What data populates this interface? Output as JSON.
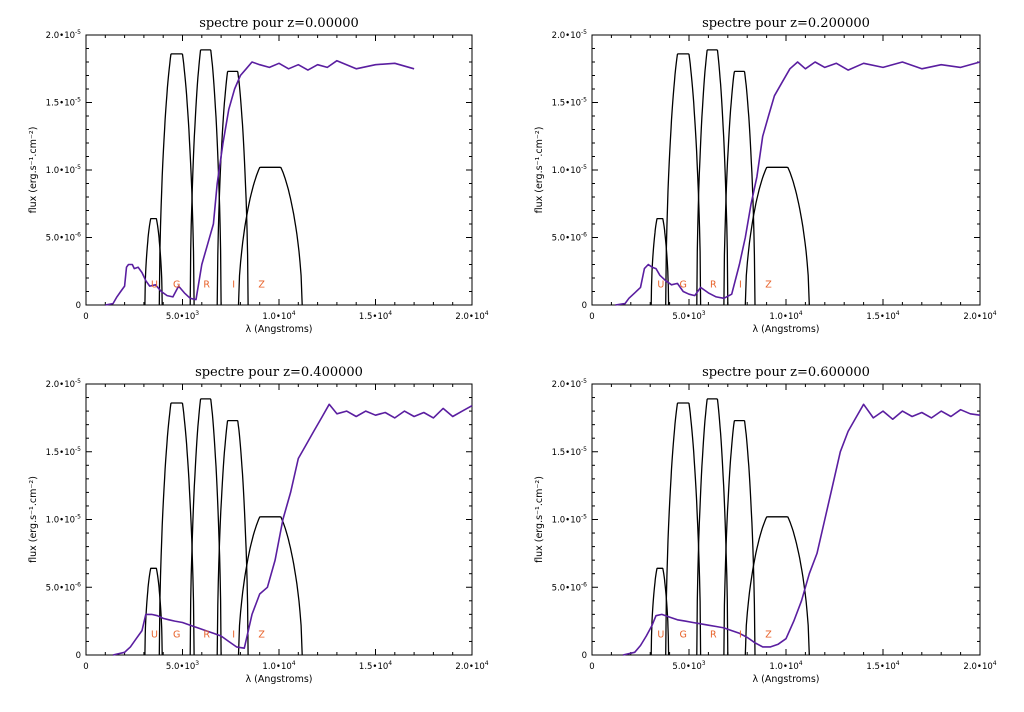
{
  "colors": {
    "spectrum": "#5a1ea0",
    "filters": "#000000",
    "band_labels": "#e8622a"
  },
  "chart_data": [
    {
      "type": "line",
      "title": "spectre pour z=0.00000",
      "xlabel": "λ (Angstroms)",
      "ylabel": "flux (erg.s⁻¹.cm⁻²)",
      "xlim": [
        0,
        20000
      ],
      "ylim": [
        0,
        2e-05
      ],
      "x_ticks": [
        {
          "v": 0,
          "t": "0",
          "e": ""
        },
        {
          "v": 5000,
          "t": "5.0•10",
          "e": "3"
        },
        {
          "v": 10000,
          "t": "1.0•10",
          "e": "4"
        },
        {
          "v": 15000,
          "t": "1.5•10",
          "e": "4"
        },
        {
          "v": 20000,
          "t": "2.0•10",
          "e": "4"
        }
      ],
      "y_ticks": [
        {
          "v": 0,
          "t": "0",
          "e": ""
        },
        {
          "v": 5e-06,
          "t": "5.0•10",
          "e": "-6"
        },
        {
          "v": 1e-05,
          "t": "1.0•10",
          "e": "-5"
        },
        {
          "v": 1.5e-05,
          "t": "1.5•10",
          "e": "-5"
        },
        {
          "v": 2e-05,
          "t": "2.0•10",
          "e": "-5"
        }
      ],
      "band_labels": [
        {
          "t": "U",
          "x": 3550
        },
        {
          "t": "G",
          "x": 4700
        },
        {
          "t": "R",
          "x": 6250
        },
        {
          "t": "I",
          "x": 7650
        },
        {
          "t": "Z",
          "x": 9100
        }
      ],
      "series": [
        {
          "x": [
            1000,
            1400,
            1600,
            1800,
            2000,
            2100,
            2200,
            2400,
            2500,
            2700,
            2900,
            3100,
            3300,
            3600,
            3900,
            4200,
            4500,
            4800,
            5100,
            5400,
            5700,
            6000,
            6300,
            6600,
            6800,
            7100,
            7400,
            7700,
            8000,
            8300,
            8600,
            9000,
            9500,
            10000,
            10500,
            11000,
            11500,
            12000,
            12500,
            13000,
            14000,
            15000,
            16000,
            17000
          ],
          "y": [
            0,
            1e-07,
            6e-07,
            1e-06,
            1.4e-06,
            2.8e-06,
            3e-06,
            3e-06,
            2.7e-06,
            2.8e-06,
            2.4e-06,
            1.8e-06,
            1.4e-06,
            1.5e-06,
            1e-06,
            7e-07,
            6e-07,
            1.4e-06,
            9e-07,
            5e-07,
            4e-07,
            3e-06,
            4.5e-06,
            6e-06,
            9e-06,
            1.2e-05,
            1.45e-05,
            1.6e-05,
            1.7e-05,
            1.75e-05,
            1.8e-05,
            1.78e-05,
            1.76e-05,
            1.79e-05,
            1.75e-05,
            1.78e-05,
            1.74e-05,
            1.78e-05,
            1.76e-05,
            1.81e-05,
            1.75e-05,
            1.78e-05,
            1.79e-05,
            1.75e-05
          ]
        }
      ]
    },
    {
      "type": "line",
      "title": "spectre pour z=0.200000",
      "xlabel": "λ (Angstroms)",
      "ylabel": "flux (erg.s⁻¹.cm⁻²)",
      "xlim": [
        0,
        20000
      ],
      "ylim": [
        0,
        2e-05
      ],
      "x_ticks": [
        {
          "v": 0,
          "t": "0",
          "e": ""
        },
        {
          "v": 5000,
          "t": "5.0•10",
          "e": "3"
        },
        {
          "v": 10000,
          "t": "1.0•10",
          "e": "4"
        },
        {
          "v": 15000,
          "t": "1.5•10",
          "e": "4"
        },
        {
          "v": 20000,
          "t": "2.0•10",
          "e": "4"
        }
      ],
      "y_ticks": [
        {
          "v": 0,
          "t": "0",
          "e": ""
        },
        {
          "v": 5e-06,
          "t": "5.0•10",
          "e": "-6"
        },
        {
          "v": 1e-05,
          "t": "1.0•10",
          "e": "-5"
        },
        {
          "v": 1.5e-05,
          "t": "1.5•10",
          "e": "-5"
        },
        {
          "v": 2e-05,
          "t": "2.0•10",
          "e": "-5"
        }
      ],
      "band_labels": [
        {
          "t": "U",
          "x": 3550
        },
        {
          "t": "G",
          "x": 4700
        },
        {
          "t": "R",
          "x": 6250
        },
        {
          "t": "I",
          "x": 7650
        },
        {
          "t": "Z",
          "x": 9100
        }
      ],
      "series": [
        {
          "x": [
            1200,
            1700,
            1900,
            2200,
            2500,
            2700,
            2900,
            3100,
            3300,
            3500,
            3800,
            4100,
            4400,
            4700,
            5000,
            5300,
            5600,
            6000,
            6400,
            6800,
            7200,
            7600,
            7900,
            8200,
            8500,
            8800,
            9100,
            9400,
            9800,
            10200,
            10600,
            11000,
            11500,
            12000,
            12600,
            13200,
            14000,
            15000,
            16000,
            17000,
            18000,
            19000,
            20000
          ],
          "y": [
            0,
            1e-07,
            5e-07,
            9e-07,
            1.3e-06,
            2.7e-06,
            3e-06,
            2.8e-06,
            2.7e-06,
            2.2e-06,
            1.8e-06,
            1.5e-06,
            1.6e-06,
            1e-06,
            8e-07,
            7e-07,
            1.3e-06,
            9e-07,
            6e-07,
            5e-07,
            8e-07,
            3e-06,
            5e-06,
            7.5e-06,
            9.5e-06,
            1.25e-05,
            1.4e-05,
            1.55e-05,
            1.65e-05,
            1.75e-05,
            1.8e-05,
            1.75e-05,
            1.8e-05,
            1.76e-05,
            1.79e-05,
            1.74e-05,
            1.79e-05,
            1.76e-05,
            1.8e-05,
            1.75e-05,
            1.78e-05,
            1.76e-05,
            1.8e-05
          ]
        }
      ]
    },
    {
      "type": "line",
      "title": "spectre pour z=0.400000",
      "xlabel": "λ (Angstroms)",
      "ylabel": "flux (erg.s⁻¹.cm⁻²)",
      "xlim": [
        0,
        20000
      ],
      "ylim": [
        0,
        2e-05
      ],
      "x_ticks": [
        {
          "v": 0,
          "t": "0",
          "e": ""
        },
        {
          "v": 5000,
          "t": "5.0•10",
          "e": "3"
        },
        {
          "v": 10000,
          "t": "1.0•10",
          "e": "4"
        },
        {
          "v": 15000,
          "t": "1.5•10",
          "e": "4"
        },
        {
          "v": 20000,
          "t": "2.0•10",
          "e": "4"
        }
      ],
      "y_ticks": [
        {
          "v": 0,
          "t": "0",
          "e": ""
        },
        {
          "v": 5e-06,
          "t": "5.0•10",
          "e": "-6"
        },
        {
          "v": 1e-05,
          "t": "1.0•10",
          "e": "-5"
        },
        {
          "v": 1.5e-05,
          "t": "1.5•10",
          "e": "-5"
        },
        {
          "v": 2e-05,
          "t": "2.0•10",
          "e": "-5"
        }
      ],
      "band_labels": [
        {
          "t": "U",
          "x": 3550
        },
        {
          "t": "G",
          "x": 4700
        },
        {
          "t": "R",
          "x": 6250
        },
        {
          "t": "I",
          "x": 7650
        },
        {
          "t": "Z",
          "x": 9100
        }
      ],
      "series": [
        {
          "x": [
            1400,
            2000,
            2300,
            2600,
            2900,
            3100,
            3400,
            3700,
            4000,
            4300,
            4600,
            5000,
            5400,
            5800,
            6200,
            6600,
            7000,
            7400,
            7800,
            8200,
            8600,
            9000,
            9400,
            9800,
            10200,
            10600,
            11000,
            11400,
            11800,
            12200,
            12600,
            13000,
            13500,
            14000,
            14500,
            15000,
            15500,
            16000,
            16500,
            17000,
            17500,
            18000,
            18500,
            19000,
            19500,
            20000
          ],
          "y": [
            0,
            2e-07,
            6e-07,
            1.2e-06,
            1.8e-06,
            3e-06,
            3e-06,
            2.9e-06,
            2.7e-06,
            2.6e-06,
            2.5e-06,
            2.4e-06,
            2.2e-06,
            2e-06,
            1.8e-06,
            1.6e-06,
            1.4e-06,
            1e-06,
            6e-07,
            5e-07,
            3e-06,
            4.5e-06,
            5e-06,
            7e-06,
            1e-05,
            1.2e-05,
            1.45e-05,
            1.55e-05,
            1.65e-05,
            1.75e-05,
            1.85e-05,
            1.78e-05,
            1.8e-05,
            1.76e-05,
            1.8e-05,
            1.77e-05,
            1.79e-05,
            1.75e-05,
            1.8e-05,
            1.76e-05,
            1.79e-05,
            1.75e-05,
            1.82e-05,
            1.76e-05,
            1.8e-05,
            1.84e-05
          ]
        }
      ]
    },
    {
      "type": "line",
      "title": "spectre pour z=0.600000",
      "xlabel": "λ (Angstroms)",
      "ylabel": "flux (erg.s⁻¹.cm⁻²)",
      "xlim": [
        0,
        20000
      ],
      "ylim": [
        0,
        2e-05
      ],
      "x_ticks": [
        {
          "v": 0,
          "t": "0",
          "e": ""
        },
        {
          "v": 5000,
          "t": "5.0•10",
          "e": "3"
        },
        {
          "v": 10000,
          "t": "1.0•10",
          "e": "4"
        },
        {
          "v": 15000,
          "t": "1.5•10",
          "e": "4"
        },
        {
          "v": 20000,
          "t": "2.0•10",
          "e": "4"
        }
      ],
      "y_ticks": [
        {
          "v": 0,
          "t": "0",
          "e": ""
        },
        {
          "v": 5e-06,
          "t": "5.0•10",
          "e": "-6"
        },
        {
          "v": 1e-05,
          "t": "1.0•10",
          "e": "-5"
        },
        {
          "v": 1.5e-05,
          "t": "1.5•10",
          "e": "-5"
        },
        {
          "v": 2e-05,
          "t": "2.0•10",
          "e": "-5"
        }
      ],
      "band_labels": [
        {
          "t": "U",
          "x": 3550
        },
        {
          "t": "G",
          "x": 4700
        },
        {
          "t": "R",
          "x": 6250
        },
        {
          "t": "I",
          "x": 7650
        },
        {
          "t": "Z",
          "x": 9100
        }
      ],
      "series": [
        {
          "x": [
            1600,
            2200,
            2500,
            2800,
            3100,
            3300,
            3600,
            4000,
            4400,
            4800,
            5200,
            5600,
            6000,
            6400,
            6800,
            7200,
            7600,
            8000,
            8400,
            8800,
            9200,
            9600,
            10000,
            10400,
            10800,
            11200,
            11600,
            12000,
            12400,
            12800,
            13200,
            13600,
            14000,
            14500,
            15000,
            15500,
            16000,
            16500,
            17000,
            17500,
            18000,
            18500,
            19000,
            19500,
            20000
          ],
          "y": [
            0,
            2e-07,
            7e-07,
            1.4e-06,
            2.2e-06,
            2.9e-06,
            3e-06,
            2.8e-06,
            2.6e-06,
            2.5e-06,
            2.4e-06,
            2.3e-06,
            2.2e-06,
            2.1e-06,
            2e-06,
            1.8e-06,
            1.6e-06,
            1.3e-06,
            9e-07,
            6e-07,
            6e-07,
            8e-07,
            1.2e-06,
            2.5e-06,
            4e-06,
            6e-06,
            7.5e-06,
            1e-05,
            1.25e-05,
            1.5e-05,
            1.65e-05,
            1.75e-05,
            1.85e-05,
            1.75e-05,
            1.8e-05,
            1.74e-05,
            1.8e-05,
            1.76e-05,
            1.79e-05,
            1.75e-05,
            1.8e-05,
            1.76e-05,
            1.81e-05,
            1.78e-05,
            1.77e-05
          ]
        }
      ]
    }
  ],
  "filters": [
    {
      "band": "U",
      "range": [
        3050,
        3950
      ],
      "peak": 6.4e-06
    },
    {
      "band": "G",
      "range": [
        3800,
        5600
      ],
      "peak": 1.86e-05
    },
    {
      "band": "R",
      "range": [
        5400,
        7000
      ],
      "peak": 1.89e-05
    },
    {
      "band": "I",
      "range": [
        6800,
        8400
      ],
      "peak": 1.73e-05
    },
    {
      "band": "Z",
      "range": [
        7900,
        11200
      ],
      "peak": 1.02e-05
    }
  ]
}
